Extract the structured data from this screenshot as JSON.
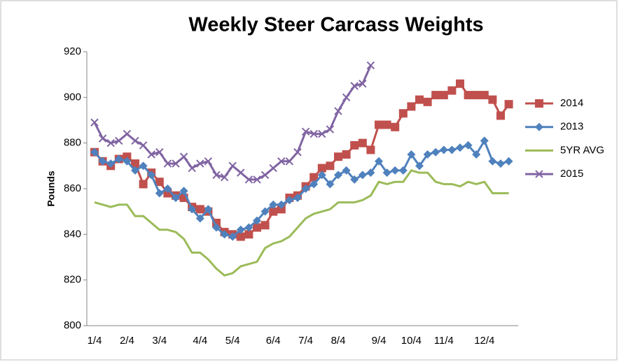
{
  "chart_data": {
    "type": "line",
    "title": "Weekly Steer Carcass Weights",
    "y_label": "Pounds",
    "categories": [
      "1/4",
      null,
      null,
      null,
      "2/4",
      null,
      null,
      null,
      "3/4",
      null,
      null,
      null,
      null,
      "4/4",
      null,
      null,
      null,
      "5/4",
      null,
      null,
      null,
      null,
      "6/4",
      null,
      null,
      null,
      "7/4",
      null,
      null,
      null,
      "8/4",
      null,
      null,
      null,
      null,
      "9/4",
      null,
      null,
      null,
      "10/4",
      null,
      null,
      null,
      "11/4",
      null,
      null,
      null,
      null,
      "12/4",
      null,
      null,
      null
    ],
    "ylim": [
      800,
      920
    ],
    "yticks": [
      800,
      820,
      840,
      860,
      880,
      900,
      920
    ],
    "legend": "right",
    "series": [
      {
        "name": "2014",
        "color": "#c0504d",
        "marker": "square",
        "values": [
          876,
          872,
          870,
          873,
          874,
          871,
          862,
          867,
          863,
          858,
          857,
          856,
          852,
          851,
          850,
          845,
          841,
          840,
          839,
          840,
          843,
          844,
          850,
          851,
          856,
          857,
          861,
          865,
          869,
          870,
          874,
          875,
          879,
          880,
          877,
          888,
          888,
          887,
          893,
          896,
          899,
          898,
          901,
          901,
          903,
          906,
          901,
          901,
          901,
          899,
          892,
          897
        ]
      },
      {
        "name": "2013",
        "color": "#4f81bd",
        "marker": "diamond",
        "values": [
          876,
          872,
          871,
          873,
          872,
          868,
          870,
          866,
          858,
          860,
          856,
          859,
          851,
          847,
          851,
          843,
          840,
          839,
          842,
          843,
          846,
          850,
          853,
          853,
          855,
          856,
          860,
          862,
          866,
          862,
          866,
          868,
          864,
          866,
          867,
          872,
          867,
          868,
          868,
          875,
          870,
          875,
          876,
          877,
          877,
          878,
          879,
          875,
          881,
          872,
          871,
          872
        ]
      },
      {
        "name": "5YR AVG",
        "color": "#9bbb59",
        "marker": "none",
        "values": [
          854,
          853,
          852,
          853,
          853,
          848,
          848,
          845,
          842,
          842,
          841,
          838,
          832,
          832,
          829,
          825,
          822,
          823,
          826,
          827,
          828,
          834,
          836,
          837,
          839,
          843,
          847,
          849,
          850,
          851,
          854,
          854,
          854,
          855,
          857,
          863,
          862,
          863,
          863,
          868,
          867,
          867,
          863,
          862,
          862,
          861,
          863,
          862,
          863,
          858,
          858,
          858
        ]
      },
      {
        "name": "2015",
        "color": "#8064a2",
        "marker": "x",
        "values": [
          889,
          882,
          880,
          881,
          884,
          881,
          879,
          875,
          876,
          871,
          871,
          874,
          869,
          871,
          872,
          866,
          865,
          870,
          867,
          864,
          864,
          866,
          869,
          872,
          872,
          876,
          885,
          884,
          884,
          886,
          894,
          900,
          905,
          906,
          914,
          null,
          null,
          null,
          null,
          null,
          null,
          null,
          null,
          null,
          null,
          null,
          null,
          null,
          null,
          null,
          null,
          null
        ]
      }
    ]
  }
}
